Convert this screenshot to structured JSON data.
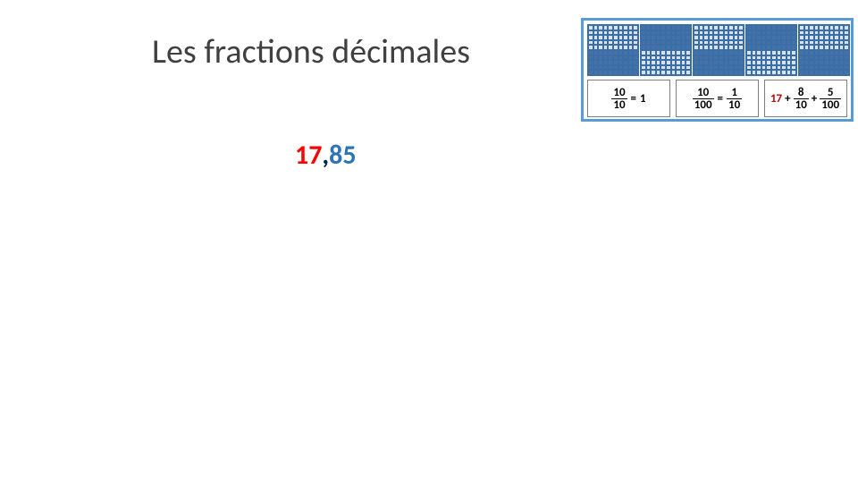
{
  "title": "Les fractions décimales",
  "decimal": {
    "int": "17",
    "comma": ",",
    "dec": "85"
  },
  "panel": {
    "border_color": "#5b9bd5",
    "grid": {
      "rows": 10,
      "cols": 10,
      "light_color": "#d9e2f3",
      "dark_color": "#4472a8",
      "gridline_color": "#3b6ea5",
      "blocks": [
        [
          "light",
          "dark",
          "light",
          "dark",
          "light"
        ],
        [
          "dark",
          "light",
          "dark",
          "light",
          "dark"
        ]
      ]
    },
    "fracs": [
      {
        "type": "eq",
        "left": {
          "n": "10",
          "d": "10"
        },
        "right_text": "1"
      },
      {
        "type": "eq2",
        "left": {
          "n": "10",
          "d": "100"
        },
        "right": {
          "n": "1",
          "d": "10"
        }
      },
      {
        "type": "sum",
        "whole": "17",
        "whole_color": "#c00000",
        "terms": [
          {
            "n": "8",
            "d": "10"
          },
          {
            "n": "5",
            "d": "100"
          }
        ]
      }
    ]
  }
}
